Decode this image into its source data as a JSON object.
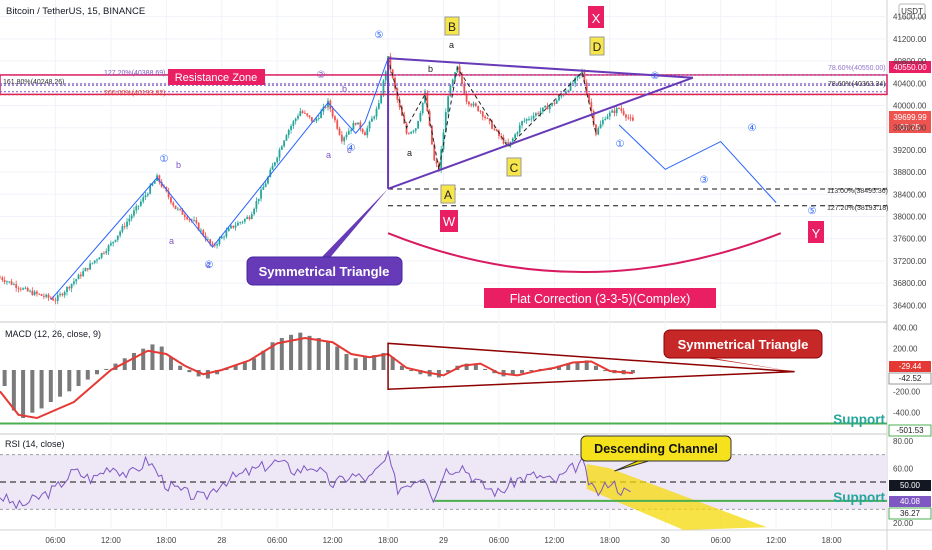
{
  "header": {
    "symbol_title": "Bitcoin / TetherUS, 15, BINANCE",
    "currency": "USDT"
  },
  "colors": {
    "bull": "#26a69a",
    "bear": "#ef5350",
    "triangle": "#673ab7",
    "wave_line": "#2962ff",
    "resistance": "#d81b60",
    "macd_line": "#e53935",
    "rsi_line": "#7e57c2",
    "support": "#4caf50",
    "channel": "#f5d90a"
  },
  "chart_data": [
    {
      "type": "candlestick",
      "title": "Bitcoin / TetherUS, 15, BINANCE",
      "ylim": [
        36100,
        41900
      ],
      "y_ticks": [
        36400,
        36800,
        37200,
        37600,
        38000,
        38400,
        38800,
        39200,
        39600,
        40000,
        40400,
        40800,
        41200,
        41600
      ],
      "x_ticks": [
        "06:00",
        "12:00",
        "18:00",
        "28",
        "06:00",
        "12:00",
        "18:00",
        "29",
        "06:00",
        "12:00",
        "18:00",
        "30",
        "06:00",
        "12:00",
        "18:00"
      ],
      "x_tick_hours": [
        6,
        12,
        18,
        24,
        30,
        36,
        42,
        48,
        54,
        60,
        66,
        72,
        78,
        84,
        90
      ],
      "x_range_hours": [
        0,
        96
      ],
      "price_path": [
        {
          "t": 0,
          "p": 36900
        },
        {
          "t": 3,
          "p": 36650
        },
        {
          "t": 6,
          "p": 36500
        },
        {
          "t": 9,
          "p": 37000
        },
        {
          "t": 12,
          "p": 37500
        },
        {
          "t": 15,
          "p": 38200
        },
        {
          "t": 17,
          "p": 38700
        },
        {
          "t": 19,
          "p": 38150
        },
        {
          "t": 21,
          "p": 37900
        },
        {
          "t": 23,
          "p": 37450
        },
        {
          "t": 25,
          "p": 37800
        },
        {
          "t": 27,
          "p": 38000
        },
        {
          "t": 29,
          "p": 38700
        },
        {
          "t": 31,
          "p": 39500
        },
        {
          "t": 32.5,
          "p": 39900
        },
        {
          "t": 34,
          "p": 39700
        },
        {
          "t": 35.5,
          "p": 40050
        },
        {
          "t": 37,
          "p": 39400
        },
        {
          "t": 38.5,
          "p": 39700
        },
        {
          "t": 39.5,
          "p": 39500
        },
        {
          "t": 41,
          "p": 40000
        },
        {
          "t": 42,
          "p": 40850
        },
        {
          "t": 43,
          "p": 40100
        },
        {
          "t": 44,
          "p": 39500
        },
        {
          "t": 45,
          "p": 39600
        },
        {
          "t": 46,
          "p": 40200
        },
        {
          "t": 47,
          "p": 39000
        },
        {
          "t": 47.5,
          "p": 38850
        },
        {
          "t": 48.5,
          "p": 40200
        },
        {
          "t": 49.5,
          "p": 40680
        },
        {
          "t": 50.5,
          "p": 40100
        },
        {
          "t": 52,
          "p": 39900
        },
        {
          "t": 54,
          "p": 39450
        },
        {
          "t": 55,
          "p": 39250
        },
        {
          "t": 56.5,
          "p": 39700
        },
        {
          "t": 58,
          "p": 39850
        },
        {
          "t": 60,
          "p": 40050
        },
        {
          "t": 62,
          "p": 40400
        },
        {
          "t": 63,
          "p": 40600
        },
        {
          "t": 64,
          "p": 39900
        },
        {
          "t": 64.5,
          "p": 39500
        },
        {
          "t": 65.5,
          "p": 39800
        },
        {
          "t": 67,
          "p": 39950
        },
        {
          "t": 68.5,
          "p": 39700
        }
      ],
      "annotations": {
        "resistance_zone": {
          "label": "Resistance Zone",
          "top": 40550,
          "bottom": 40200,
          "price_tag": "40550.00"
        },
        "fib_levels": [
          {
            "label": "127.20%(40388.69)",
            "price": 40388.69
          },
          {
            "label": "161.80%(40248.26)",
            "price": 40248.26
          },
          {
            "label": "200.00%(40193.82)",
            "price": 40193.82
          },
          {
            "label": "78.60%(40363.34)",
            "price": 40363.34
          },
          {
            "label": "113.00%(38495.36)",
            "price": 38495.36
          },
          {
            "label": "127.20%(38193.18)",
            "price": 38193.18
          }
        ],
        "fib_top_label": "78.60%(40550.00)",
        "current_price": "39699.99",
        "countdown": "07:25",
        "symmetrical_triangle_label": "Symmetrical Triangle",
        "flat_correction_label": "Flat Correction (3-3-5)(Complex)",
        "wave_labels": {
          "A": "A",
          "B": "B",
          "C": "C",
          "D": "D",
          "X": "X",
          "W": "W",
          "Y": "Y",
          "a": "a",
          "b": "b",
          "c": "c",
          "one": "①",
          "two": "②",
          "three": "③",
          "four": "④",
          "five": "⑤"
        },
        "projection_path": [
          {
            "t": 67,
            "p": 39650
          },
          {
            "t": 72,
            "p": 38850
          },
          {
            "t": 78,
            "p": 39350
          },
          {
            "t": 84,
            "p": 38250
          }
        ]
      }
    },
    {
      "type": "line",
      "title": "MACD (12, 26, close, 9)",
      "ylim": [
        -600,
        450
      ],
      "y_ticks": [
        400,
        200,
        0,
        -200,
        -400
      ],
      "y_tick_labels": [
        "400.00",
        "200.00",
        "",
        "-200.00",
        "-400.00"
      ],
      "values": {
        "macd": "-29.44",
        "signal": "-42.52",
        "support_level": "-501.53"
      },
      "macd_path": [
        {
          "t": 0,
          "v": -200
        },
        {
          "t": 2,
          "v": -420
        },
        {
          "t": 4,
          "v": -450
        },
        {
          "t": 8,
          "v": -300
        },
        {
          "t": 12,
          "v": 0
        },
        {
          "t": 16,
          "v": 180
        },
        {
          "t": 18,
          "v": 150
        },
        {
          "t": 20,
          "v": 40
        },
        {
          "t": 22,
          "v": -40
        },
        {
          "t": 24,
          "v": 0
        },
        {
          "t": 27,
          "v": 90
        },
        {
          "t": 30,
          "v": 250
        },
        {
          "t": 33,
          "v": 300
        },
        {
          "t": 36,
          "v": 260
        },
        {
          "t": 38,
          "v": 150
        },
        {
          "t": 40,
          "v": 120
        },
        {
          "t": 42,
          "v": 150
        },
        {
          "t": 44,
          "v": 20
        },
        {
          "t": 46,
          "v": -20
        },
        {
          "t": 48,
          "v": -50
        },
        {
          "t": 50,
          "v": 40
        },
        {
          "t": 52,
          "v": 60
        },
        {
          "t": 54,
          "v": -30
        },
        {
          "t": 56,
          "v": -50
        },
        {
          "t": 58,
          "v": -10
        },
        {
          "t": 60,
          "v": 20
        },
        {
          "t": 62,
          "v": 70
        },
        {
          "t": 64,
          "v": 80
        },
        {
          "t": 66,
          "v": -10
        },
        {
          "t": 68.5,
          "v": -29
        }
      ],
      "histogram": [
        {
          "t": 0.5,
          "v": -150
        },
        {
          "t": 1.5,
          "v": -380
        },
        {
          "t": 2.5,
          "v": -450
        },
        {
          "t": 3.5,
          "v": -400
        },
        {
          "t": 4.5,
          "v": -360
        },
        {
          "t": 5.5,
          "v": -300
        },
        {
          "t": 6.5,
          "v": -250
        },
        {
          "t": 7.5,
          "v": -200
        },
        {
          "t": 8.5,
          "v": -150
        },
        {
          "t": 9.5,
          "v": -90
        },
        {
          "t": 10.5,
          "v": -40
        },
        {
          "t": 11.5,
          "v": 10
        },
        {
          "t": 12.5,
          "v": 60
        },
        {
          "t": 13.5,
          "v": 110
        },
        {
          "t": 14.5,
          "v": 160
        },
        {
          "t": 15.5,
          "v": 200
        },
        {
          "t": 16.5,
          "v": 240
        },
        {
          "t": 17.5,
          "v": 220
        },
        {
          "t": 18.5,
          "v": 120
        },
        {
          "t": 19.5,
          "v": 40
        },
        {
          "t": 20.5,
          "v": -20
        },
        {
          "t": 21.5,
          "v": -60
        },
        {
          "t": 22.5,
          "v": -80
        },
        {
          "t": 23.5,
          "v": -40
        },
        {
          "t": 24.5,
          "v": 10
        },
        {
          "t": 25.5,
          "v": 50
        },
        {
          "t": 26.5,
          "v": 80
        },
        {
          "t": 27.5,
          "v": 110
        },
        {
          "t": 28.5,
          "v": 180
        },
        {
          "t": 29.5,
          "v": 260
        },
        {
          "t": 30.5,
          "v": 300
        },
        {
          "t": 31.5,
          "v": 330
        },
        {
          "t": 32.5,
          "v": 350
        },
        {
          "t": 33.5,
          "v": 320
        },
        {
          "t": 34.5,
          "v": 300
        },
        {
          "t": 35.5,
          "v": 270
        },
        {
          "t": 36.5,
          "v": 220
        },
        {
          "t": 37.5,
          "v": 150
        },
        {
          "t": 38.5,
          "v": 110
        },
        {
          "t": 39.5,
          "v": 120
        },
        {
          "t": 40.5,
          "v": 140
        },
        {
          "t": 41.5,
          "v": 160
        },
        {
          "t": 42.5,
          "v": 120
        },
        {
          "t": 43.5,
          "v": 40
        },
        {
          "t": 44.5,
          "v": -10
        },
        {
          "t": 45.5,
          "v": -40
        },
        {
          "t": 46.5,
          "v": -60
        },
        {
          "t": 47.5,
          "v": -70
        },
        {
          "t": 48.5,
          "v": -20
        },
        {
          "t": 49.5,
          "v": 40
        },
        {
          "t": 50.5,
          "v": 60
        },
        {
          "t": 51.5,
          "v": 50
        },
        {
          "t": 52.5,
          "v": 10
        },
        {
          "t": 53.5,
          "v": -30
        },
        {
          "t": 54.5,
          "v": -60
        },
        {
          "t": 55.5,
          "v": -50
        },
        {
          "t": 56.5,
          "v": -30
        },
        {
          "t": 57.5,
          "v": -10
        },
        {
          "t": 58.5,
          "v": 10
        },
        {
          "t": 59.5,
          "v": 20
        },
        {
          "t": 60.5,
          "v": 40
        },
        {
          "t": 61.5,
          "v": 60
        },
        {
          "t": 62.5,
          "v": 80
        },
        {
          "t": 63.5,
          "v": 90
        },
        {
          "t": 64.5,
          "v": 40
        },
        {
          "t": 65.5,
          "v": -10
        },
        {
          "t": 66.5,
          "v": -30
        },
        {
          "t": 67.5,
          "v": -40
        },
        {
          "t": 68.5,
          "v": -30
        }
      ],
      "annotations": {
        "symmetrical_triangle_label": "Symmetrical Triangle",
        "support_label": "Support"
      }
    },
    {
      "type": "line",
      "title": "RSI (14, close)",
      "ylim": [
        15,
        85
      ],
      "y_ticks": [
        80,
        60,
        20
      ],
      "y_tick_labels": [
        "80.00",
        "60.00",
        "20.00"
      ],
      "values": {
        "level_50": "50.00",
        "rsi": "40.08",
        "support_level": "36.27"
      },
      "bands": {
        "upper": 70,
        "lower": 30
      },
      "rsi_path": [
        {
          "t": 0,
          "v": 40
        },
        {
          "t": 2,
          "v": 32
        },
        {
          "t": 4,
          "v": 38
        },
        {
          "t": 6,
          "v": 45
        },
        {
          "t": 8,
          "v": 58
        },
        {
          "t": 10,
          "v": 52
        },
        {
          "t": 12,
          "v": 62
        },
        {
          "t": 14,
          "v": 55
        },
        {
          "t": 16,
          "v": 66
        },
        {
          "t": 18,
          "v": 48
        },
        {
          "t": 20,
          "v": 42
        },
        {
          "t": 22,
          "v": 38
        },
        {
          "t": 24,
          "v": 50
        },
        {
          "t": 26,
          "v": 55
        },
        {
          "t": 28,
          "v": 60
        },
        {
          "t": 30,
          "v": 65
        },
        {
          "t": 32,
          "v": 58
        },
        {
          "t": 34,
          "v": 62
        },
        {
          "t": 36,
          "v": 48
        },
        {
          "t": 38,
          "v": 55
        },
        {
          "t": 40,
          "v": 52
        },
        {
          "t": 42,
          "v": 68
        },
        {
          "t": 43,
          "v": 45
        },
        {
          "t": 45,
          "v": 52
        },
        {
          "t": 46,
          "v": 56
        },
        {
          "t": 47,
          "v": 36
        },
        {
          "t": 48,
          "v": 58
        },
        {
          "t": 50,
          "v": 62
        },
        {
          "t": 52,
          "v": 48
        },
        {
          "t": 54,
          "v": 42
        },
        {
          "t": 56,
          "v": 52
        },
        {
          "t": 58,
          "v": 55
        },
        {
          "t": 60,
          "v": 50
        },
        {
          "t": 62,
          "v": 60
        },
        {
          "t": 63,
          "v": 64
        },
        {
          "t": 64,
          "v": 45
        },
        {
          "t": 65,
          "v": 42
        },
        {
          "t": 66,
          "v": 52
        },
        {
          "t": 67,
          "v": 45
        },
        {
          "t": 68.5,
          "v": 40
        }
      ],
      "annotations": {
        "descending_channel_label": "Descending Channel",
        "support_label": "Support"
      }
    }
  ]
}
